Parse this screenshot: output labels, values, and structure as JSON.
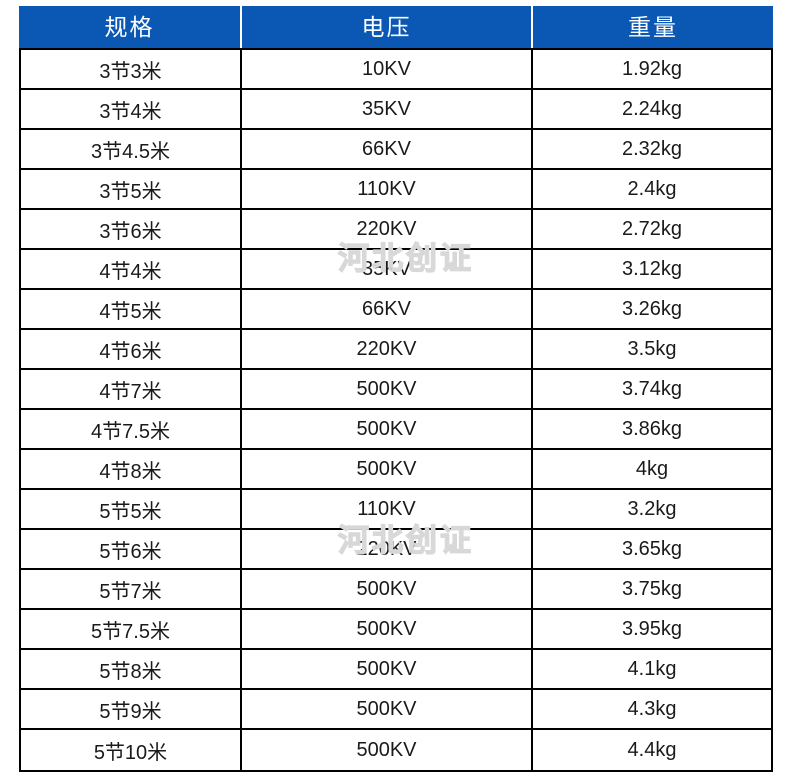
{
  "chart_data": {
    "type": "table",
    "title": "",
    "columns": [
      "规格",
      "电压",
      "重量"
    ],
    "rows": [
      [
        "3节3米",
        "10KV",
        "1.92kg"
      ],
      [
        "3节4米",
        "35KV",
        "2.24kg"
      ],
      [
        "3节4.5米",
        "66KV",
        "2.32kg"
      ],
      [
        "3节5米",
        "110KV",
        "2.4kg"
      ],
      [
        "3节6米",
        "220KV",
        "2.72kg"
      ],
      [
        "4节4米",
        "35KV",
        "3.12kg"
      ],
      [
        "4节5米",
        "66KV",
        "3.26kg"
      ],
      [
        "4节6米",
        "220KV",
        "3.5kg"
      ],
      [
        "4节7米",
        "500KV",
        "3.74kg"
      ],
      [
        "4节7.5米",
        "500KV",
        "3.86kg"
      ],
      [
        "4节8米",
        "500KV",
        "4kg"
      ],
      [
        "5节5米",
        "110KV",
        "3.2kg"
      ],
      [
        "5节6米",
        "220KV",
        "3.65kg"
      ],
      [
        "5节7米",
        "500KV",
        "3.75kg"
      ],
      [
        "5节7.5米",
        "500KV",
        "3.95kg"
      ],
      [
        "5节8米",
        "500KV",
        "4.1kg"
      ],
      [
        "5节9米",
        "500KV",
        "4.3kg"
      ],
      [
        "5节10米",
        "500KV",
        "4.4kg"
      ]
    ]
  },
  "watermark": {
    "text": "河北创证"
  },
  "colors": {
    "header_bg": "#0a58b3",
    "header_text": "#ffffff",
    "border": "#000000",
    "body_text": "#1a1a1a",
    "watermark": "#d8d8d8"
  }
}
